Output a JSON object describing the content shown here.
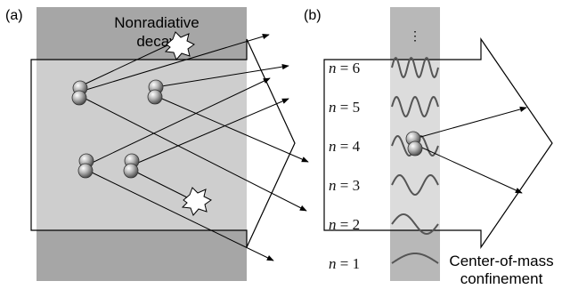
{
  "panel_a": {
    "label": "(a)",
    "decay_label": "Nonradiative decay",
    "decay_label_lines": [
      "Nonradiative",
      "decay"
    ]
  },
  "panel_b": {
    "label": "(b)",
    "ellipsis": "⋮",
    "levels": [
      {
        "n_text": "n = 6",
        "var": "n",
        "rest": " = 6"
      },
      {
        "n_text": "n = 5",
        "var": "n",
        "rest": " = 5"
      },
      {
        "n_text": "n = 4",
        "var": "n",
        "rest": " = 4"
      },
      {
        "n_text": "n = 3",
        "var": "n",
        "rest": " = 3"
      },
      {
        "n_text": "n = 2",
        "var": "n",
        "rest": " = 2"
      },
      {
        "n_text": "n = 1",
        "var": "n",
        "rest": " = 1"
      }
    ],
    "confinement_label": "Center-of-mass confinement",
    "confinement_label_lines": [
      "Center-of-mass",
      "confinement"
    ]
  }
}
